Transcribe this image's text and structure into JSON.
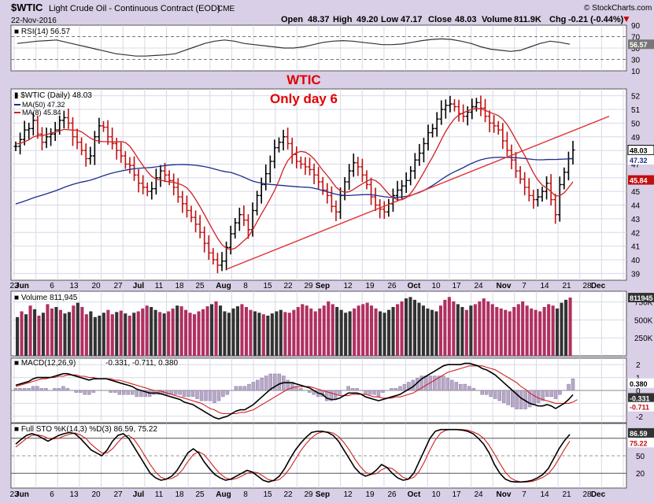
{
  "header": {
    "symbol": "$WTIC",
    "name": "Light Crude Oil - Continuous Contract (EOD)",
    "exchange": "CME",
    "date": "22-Nov-2016",
    "brand": "© StockCharts.com",
    "open_label": "Open",
    "open": "48.37",
    "high_label": "High",
    "high": "49.20",
    "low_label": "Low",
    "low": "47.17",
    "close_label": "Close",
    "close": "48.03",
    "volume_label": "Volume",
    "volume": "811.9K",
    "chg_label": "Chg",
    "chg": "-0.21 (-0.44%)"
  },
  "annotation": {
    "line1": "WTIC",
    "line2": "Only day 6"
  },
  "colors": {
    "background": "#d9cfe6",
    "panel": "#ffffff",
    "grid": "#d8d8e8",
    "up_volume": "#333333",
    "down_volume": "#b03060",
    "ma50": "#1a2e8c",
    "ma8": "#d02020",
    "trendline": "#e03030",
    "annotation": "#e00000",
    "tag_dark": "#333333",
    "tag_blue": "#1a2e8c",
    "tag_red": "#c01010",
    "tag_gray": "#777777"
  },
  "chart_data": [
    {
      "type": "line",
      "panel": "rsi",
      "label": "RSI(14) 56.57",
      "last": "56.57",
      "ylim": [
        10,
        90
      ],
      "y_ticks": [
        "90",
        "70",
        "50",
        "30",
        "10"
      ],
      "reference_lines": [
        70,
        30
      ],
      "values": [
        58,
        60,
        62,
        63,
        64,
        60,
        56,
        52,
        48,
        44,
        40,
        38,
        36,
        36,
        37,
        38,
        40,
        46,
        52,
        58,
        62,
        64,
        62,
        58,
        56,
        54,
        52,
        50,
        50,
        52,
        56,
        60,
        62,
        63,
        62,
        60,
        58,
        56,
        56,
        57,
        60,
        63,
        65,
        66,
        65,
        62,
        58,
        52,
        48,
        46,
        44,
        46,
        52,
        58,
        62,
        60,
        56.57
      ]
    },
    {
      "type": "line",
      "panel": "price",
      "label": "$WTIC (Daily) 48.03",
      "ylim": [
        38.5,
        52.5
      ],
      "y_ticks": [
        "52",
        "51",
        "50",
        "49",
        "48",
        "47",
        "46",
        "45",
        "44",
        "43",
        "42",
        "41",
        "40",
        "39"
      ],
      "x_tick_labels": [
        "23",
        "Jun",
        "6",
        "13",
        "20",
        "27",
        "Jul",
        "11",
        "18",
        "25",
        "Aug",
        "8",
        "15",
        "22",
        "29",
        "Sep",
        "12",
        "19",
        "26",
        "Oct",
        "10",
        "17",
        "24",
        "Nov",
        "7",
        "14",
        "21",
        "28",
        "Dec"
      ],
      "series": [
        {
          "name": "$WTIC (Daily) 48.03",
          "kind": "ohlc",
          "close": [
            48.3,
            48.8,
            49.5,
            49.6,
            50.2,
            49.2,
            48.6,
            49.0,
            49.2,
            49.5,
            50.2,
            50.4,
            50.0,
            49.0,
            48.6,
            48.0,
            47.4,
            47.6,
            49.0,
            49.8,
            49.7,
            49.0,
            48.5,
            48.0,
            47.6,
            47.0,
            46.9,
            46.2,
            45.6,
            45.3,
            45.0,
            45.2,
            46.0,
            46.5,
            46.2,
            45.8,
            45.3,
            44.6,
            44.1,
            43.6,
            43.1,
            42.6,
            42.0,
            41.2,
            40.5,
            40.0,
            39.6,
            39.9,
            40.9,
            41.9,
            42.7,
            43.3,
            42.9,
            42.2,
            43.6,
            44.7,
            45.5,
            46.3,
            47.2,
            48.2,
            48.6,
            49.0,
            48.5,
            47.7,
            47.2,
            47.0,
            46.8,
            46.6,
            46.2,
            45.7,
            45.1,
            44.7,
            43.9,
            43.5,
            44.7,
            45.7,
            46.5,
            47.1,
            46.8,
            46.2,
            45.5,
            44.6,
            44.0,
            43.7,
            43.5,
            44.1,
            44.7,
            45.1,
            45.4,
            45.8,
            46.5,
            47.3,
            47.8,
            48.5,
            49.3,
            49.6,
            50.3,
            51.0,
            51.3,
            51.4,
            51.2,
            50.7,
            50.5,
            50.8,
            51.2,
            51.5,
            51.1,
            50.5,
            50.0,
            49.8,
            49.5,
            48.7,
            48.0,
            47.3,
            46.5,
            45.9,
            45.3,
            44.7,
            44.4,
            44.6,
            45.0,
            45.6,
            44.4,
            43.3,
            45.5,
            46.4,
            47.4,
            48.03
          ]
        },
        {
          "name": "MA(50) 47.32",
          "kind": "line",
          "last": "47.32"
        },
        {
          "name": "MA(8) 45.84",
          "kind": "line",
          "last": "45.84"
        }
      ],
      "price_tags": [
        "48.03",
        "47.32",
        "45.84"
      ],
      "trendline": {
        "from": [
          "Aug 1",
          39.3
        ],
        "to": [
          "Dec",
          50.5
        ]
      }
    },
    {
      "type": "bar",
      "panel": "volume",
      "label": "Volume 811,945",
      "y_ticks": [
        "811945",
        "750K",
        "500K",
        "250K"
      ],
      "last": "811945",
      "values": [
        540,
        620,
        580,
        700,
        650,
        560,
        600,
        720,
        660,
        680,
        640,
        590,
        610,
        700,
        740,
        680,
        580,
        620,
        540,
        560,
        600,
        640,
        580,
        610,
        630,
        590,
        560,
        600,
        620,
        660,
        700,
        680,
        640,
        610,
        590,
        620,
        660,
        700,
        690,
        640,
        600,
        580,
        620,
        650,
        690,
        720,
        760,
        700,
        620,
        600,
        660,
        690,
        720,
        680,
        640,
        620,
        600,
        580,
        560,
        590,
        620,
        640,
        610,
        600,
        640,
        680,
        720,
        700,
        660,
        620,
        660,
        700,
        760,
        720,
        680,
        640,
        600,
        620,
        660,
        700,
        720,
        740,
        700,
        660,
        620,
        600,
        640,
        680,
        720,
        760,
        800,
        820,
        780,
        740,
        700,
        660,
        640,
        620,
        700,
        780,
        820,
        760,
        720,
        680,
        640,
        700,
        720,
        760,
        800,
        760,
        720,
        680,
        660,
        640,
        620,
        680,
        720,
        760,
        700,
        660,
        640,
        620,
        680,
        720,
        700,
        660,
        740,
        780,
        812
      ],
      "down_days": [
        1,
        3,
        5,
        7,
        8,
        10,
        13,
        15,
        16,
        21,
        22,
        24,
        26,
        28,
        29,
        30,
        33,
        35,
        36,
        38,
        39,
        40,
        41,
        42,
        43,
        44,
        46,
        52,
        53,
        54,
        57,
        62,
        63,
        64,
        65,
        66,
        67,
        68,
        69,
        70,
        71,
        72,
        73,
        78,
        79,
        80,
        81,
        82,
        83,
        88,
        89,
        98,
        99,
        100,
        101,
        104,
        106,
        107,
        108,
        109,
        110,
        111,
        112,
        113,
        114,
        115,
        116,
        117,
        118,
        119,
        120,
        121,
        122,
        123,
        124,
        128
      ]
    },
    {
      "type": "line",
      "panel": "macd",
      "label": "MACD(12,26,9)",
      "values_label": "-0.331, -0.711, 0.380",
      "y_ticks": [
        "2",
        "1",
        "0",
        "-1",
        "-2"
      ],
      "price_tags": [
        "0.380",
        "-0.331",
        "-0.711"
      ],
      "macd": [
        0.4,
        0.5,
        0.6,
        0.7,
        0.9,
        1.0,
        1.0,
        1.0,
        1.0,
        1.1,
        1.2,
        1.3,
        1.3,
        1.2,
        1.1,
        1.0,
        0.9,
        0.8,
        0.9,
        0.9,
        0.9,
        0.9,
        0.8,
        0.7,
        0.6,
        0.5,
        0.4,
        0.3,
        0.1,
        0.0,
        -0.1,
        -0.2,
        -0.2,
        -0.2,
        -0.3,
        -0.4,
        -0.5,
        -0.6,
        -0.7,
        -0.9,
        -1.0,
        -1.1,
        -1.3,
        -1.5,
        -1.7,
        -1.9,
        -2.1,
        -2.2,
        -2.1,
        -2.0,
        -1.8,
        -1.6,
        -1.5,
        -1.5,
        -1.3,
        -1.1,
        -0.8,
        -0.5,
        -0.2,
        0.1,
        0.3,
        0.5,
        0.6,
        0.6,
        0.6,
        0.5,
        0.4,
        0.3,
        0.2,
        0.0,
        -0.2,
        -0.3,
        -0.6,
        -0.7,
        -0.7,
        -0.6,
        -0.4,
        -0.2,
        -0.2,
        -0.2,
        -0.3,
        -0.5,
        -0.6,
        -0.7,
        -0.8,
        -0.7,
        -0.6,
        -0.5,
        -0.4,
        -0.3,
        -0.1,
        0.1,
        0.3,
        0.6,
        0.9,
        1.1,
        1.3,
        1.5,
        1.7,
        1.9,
        2.0,
        2.0,
        2.0,
        2.0,
        2.1,
        2.1,
        2.0,
        1.9,
        1.7,
        1.6,
        1.4,
        1.2,
        0.9,
        0.6,
        0.3,
        0.0,
        -0.3,
        -0.6,
        -0.8,
        -1.0,
        -1.1,
        -1.2,
        -1.2,
        -1.1,
        -1.2,
        -1.4,
        -1.2,
        -1.0,
        -0.7,
        -0.331
      ],
      "signal": [
        0.3,
        0.4,
        0.5,
        0.6,
        0.7,
        0.8,
        0.9,
        0.9,
        1.0,
        1.0,
        1.1,
        1.1,
        1.2,
        1.2,
        1.2,
        1.1,
        1.1,
        1.0,
        1.0,
        0.9,
        0.9,
        0.9,
        0.9,
        0.8,
        0.8,
        0.7,
        0.6,
        0.5,
        0.4,
        0.3,
        0.2,
        0.1,
        0.0,
        0.0,
        -0.1,
        -0.2,
        -0.3,
        -0.4,
        -0.5,
        -0.6,
        -0.7,
        -0.8,
        -0.9,
        -1.0,
        -1.2,
        -1.4,
        -1.5,
        -1.7,
        -1.8,
        -1.8,
        -1.8,
        -1.8,
        -1.7,
        -1.7,
        -1.6,
        -1.5,
        -1.3,
        -1.1,
        -0.9,
        -0.7,
        -0.5,
        -0.3,
        -0.1,
        0.1,
        0.2,
        0.3,
        0.3,
        0.3,
        0.3,
        0.2,
        0.1,
        0.0,
        -0.1,
        -0.2,
        -0.3,
        -0.4,
        -0.4,
        -0.4,
        -0.3,
        -0.3,
        -0.3,
        -0.3,
        -0.4,
        -0.5,
        -0.5,
        -0.6,
        -0.6,
        -0.6,
        -0.5,
        -0.5,
        -0.4,
        -0.3,
        -0.2,
        0.0,
        0.2,
        0.4,
        0.6,
        0.8,
        1.0,
        1.2,
        1.4,
        1.5,
        1.6,
        1.7,
        1.8,
        1.9,
        1.9,
        1.9,
        1.9,
        1.8,
        1.7,
        1.6,
        1.4,
        1.2,
        1.0,
        0.8,
        0.6,
        0.3,
        0.1,
        -0.2,
        -0.4,
        -0.6,
        -0.7,
        -0.8,
        -0.9,
        -1.0,
        -1.0,
        -1.0,
        -1.0,
        -0.9,
        -0.711
      ]
    },
    {
      "type": "line",
      "panel": "stochastic",
      "label": "Full STO %K(14,3) %D(3) 86.59, 75.22",
      "y_ticks": [
        "80",
        "50",
        "20"
      ],
      "reference_lines": [
        80,
        50,
        20
      ],
      "price_tags": [
        "86.59",
        "75.22"
      ],
      "k": [
        70,
        78,
        85,
        88,
        85,
        80,
        75,
        80,
        85,
        88,
        90,
        88,
        80,
        70,
        60,
        55,
        50,
        60,
        75,
        85,
        88,
        80,
        65,
        50,
        35,
        20,
        12,
        8,
        10,
        15,
        25,
        40,
        55,
        62,
        55,
        40,
        28,
        18,
        12,
        8,
        10,
        15,
        20,
        25,
        22,
        15,
        8,
        5,
        8,
        15,
        28,
        45,
        60,
        72,
        82,
        90,
        92,
        92,
        90,
        85,
        75,
        60,
        45,
        30,
        20,
        15,
        18,
        25,
        35,
        30,
        20,
        12,
        8,
        10,
        20,
        40,
        60,
        80,
        92,
        95,
        95,
        95,
        95,
        94,
        92,
        88,
        80,
        70,
        55,
        35,
        20,
        10,
        6,
        5,
        5,
        6,
        8,
        12,
        18,
        28,
        45,
        62,
        76,
        86.59
      ],
      "d": [
        65,
        72,
        80,
        85,
        86,
        84,
        80,
        79,
        80,
        84,
        87,
        89,
        86,
        80,
        70,
        62,
        55,
        55,
        62,
        73,
        83,
        85,
        78,
        65,
        50,
        35,
        22,
        13,
        10,
        11,
        16,
        26,
        40,
        52,
        57,
        52,
        41,
        29,
        19,
        12,
        9,
        11,
        15,
        20,
        22,
        21,
        15,
        9,
        7,
        9,
        17,
        29,
        44,
        59,
        71,
        81,
        88,
        91,
        91,
        89,
        83,
        73,
        60,
        45,
        32,
        22,
        18,
        19,
        26,
        30,
        28,
        21,
        13,
        10,
        13,
        23,
        40,
        60,
        77,
        89,
        94,
        95,
        95,
        95,
        94,
        91,
        87,
        80,
        68,
        53,
        37,
        22,
        12,
        7,
        5,
        5,
        6,
        9,
        13,
        19,
        30,
        45,
        61,
        75.22
      ]
    }
  ]
}
